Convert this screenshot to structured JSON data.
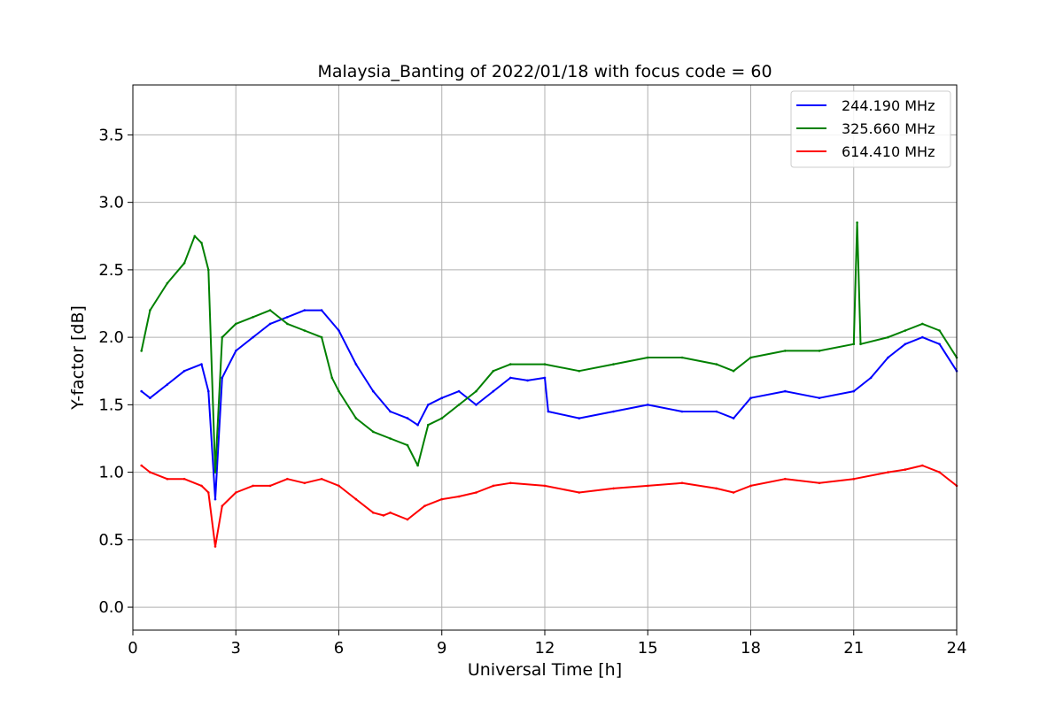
{
  "chart_data": {
    "type": "line",
    "title": "Malaysia_Banting of 2022/01/18 with focus code = 60",
    "xlabel": "Universal Time [h]",
    "ylabel": "Y-factor [dB]",
    "xlim": [
      0,
      24
    ],
    "ylim": [
      -0.17,
      3.87
    ],
    "xticks": [
      0,
      3,
      6,
      9,
      12,
      15,
      18,
      21,
      24
    ],
    "yticks": [
      0.0,
      0.5,
      1.0,
      1.5,
      2.0,
      2.5,
      3.0,
      3.5
    ],
    "xtick_labels": [
      "0",
      "3",
      "6",
      "9",
      "12",
      "15",
      "18",
      "21",
      "24"
    ],
    "ytick_labels": [
      "0.0",
      "0.5",
      "1.0",
      "1.5",
      "2.0",
      "2.5",
      "3.0",
      "3.5"
    ],
    "grid": true,
    "legend_position": "top-right",
    "series": [
      {
        "name": "244.190 MHz",
        "color": "#0000ff",
        "x": [
          0.25,
          0.5,
          1.0,
          1.5,
          2.0,
          2.2,
          2.4,
          2.6,
          3.0,
          3.5,
          4.0,
          4.5,
          5.0,
          5.5,
          6.0,
          6.5,
          7.0,
          7.5,
          8.0,
          8.3,
          8.6,
          9.0,
          9.5,
          10.0,
          10.5,
          11.0,
          11.5,
          12.0,
          12.1,
          13.0,
          14.0,
          15.0,
          16.0,
          17.0,
          17.5,
          18.0,
          19.0,
          20.0,
          21.0,
          21.5,
          22.0,
          22.5,
          23.0,
          23.5,
          24.0
        ],
        "y": [
          1.6,
          1.55,
          1.65,
          1.75,
          1.8,
          1.6,
          0.8,
          1.7,
          1.9,
          2.0,
          2.1,
          2.15,
          2.2,
          2.2,
          2.05,
          1.8,
          1.6,
          1.45,
          1.4,
          1.35,
          1.5,
          1.55,
          1.6,
          1.5,
          1.6,
          1.7,
          1.68,
          1.7,
          1.45,
          1.4,
          1.45,
          1.5,
          1.45,
          1.45,
          1.4,
          1.55,
          1.6,
          1.55,
          1.6,
          1.7,
          1.85,
          1.95,
          2.0,
          1.95,
          1.75
        ]
      },
      {
        "name": "325.660 MHz",
        "color": "#008000",
        "x": [
          0.25,
          0.5,
          1.0,
          1.5,
          1.8,
          2.0,
          2.2,
          2.4,
          2.6,
          3.0,
          3.5,
          4.0,
          4.5,
          5.0,
          5.5,
          5.8,
          6.0,
          6.5,
          7.0,
          7.5,
          8.0,
          8.3,
          8.6,
          9.0,
          9.5,
          10.0,
          10.5,
          11.0,
          12.0,
          13.0,
          14.0,
          15.0,
          16.0,
          17.0,
          17.5,
          18.0,
          19.0,
          20.0,
          21.0,
          21.1,
          21.2,
          22.0,
          22.5,
          23.0,
          23.5,
          24.0
        ],
        "y": [
          1.9,
          2.2,
          2.4,
          2.55,
          2.75,
          2.7,
          2.5,
          1.0,
          2.0,
          2.1,
          2.15,
          2.2,
          2.1,
          2.05,
          2.0,
          1.7,
          1.6,
          1.4,
          1.3,
          1.25,
          1.2,
          1.05,
          1.35,
          1.4,
          1.5,
          1.6,
          1.75,
          1.8,
          1.8,
          1.75,
          1.8,
          1.85,
          1.85,
          1.8,
          1.75,
          1.85,
          1.9,
          1.9,
          1.95,
          2.85,
          1.95,
          2.0,
          2.05,
          2.1,
          2.05,
          1.85
        ]
      },
      {
        "name": "614.410 MHz",
        "color": "#ff0000",
        "x": [
          0.25,
          0.5,
          1.0,
          1.5,
          2.0,
          2.2,
          2.4,
          2.6,
          3.0,
          3.5,
          4.0,
          4.5,
          5.0,
          5.5,
          6.0,
          6.5,
          7.0,
          7.3,
          7.5,
          8.0,
          8.5,
          9.0,
          9.5,
          10.0,
          10.5,
          11.0,
          12.0,
          13.0,
          14.0,
          15.0,
          16.0,
          17.0,
          17.5,
          18.0,
          19.0,
          20.0,
          21.0,
          22.0,
          22.5,
          23.0,
          23.5,
          24.0
        ],
        "y": [
          1.05,
          1.0,
          0.95,
          0.95,
          0.9,
          0.85,
          0.45,
          0.75,
          0.85,
          0.9,
          0.9,
          0.95,
          0.92,
          0.95,
          0.9,
          0.8,
          0.7,
          0.68,
          0.7,
          0.65,
          0.75,
          0.8,
          0.82,
          0.85,
          0.9,
          0.92,
          0.9,
          0.85,
          0.88,
          0.9,
          0.92,
          0.88,
          0.85,
          0.9,
          0.95,
          0.92,
          0.95,
          1.0,
          1.02,
          1.05,
          1.0,
          0.9
        ]
      }
    ]
  }
}
